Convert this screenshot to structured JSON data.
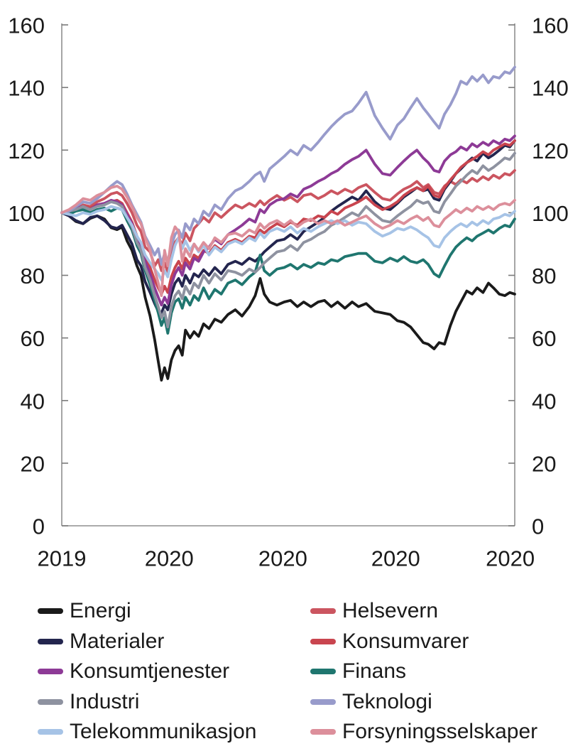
{
  "figure": {
    "kind": "sector-index-line-chart",
    "background": "#ffffff",
    "text_color": "#1a1a1a",
    "axis_color": "#8f8f8f",
    "tick_color": "#7a7a7a"
  },
  "chart_data": {
    "type": "line",
    "title": "",
    "xlabel": "",
    "ylabel": "",
    "index_base": 100,
    "x_axis": {
      "tick_labels": [
        "2019",
        "2020",
        "2020",
        "2020",
        "2020"
      ],
      "tick_positions": [
        0,
        0.237,
        0.488,
        0.737,
        0.99
      ]
    },
    "y_axis": {
      "min": 0,
      "max": 160,
      "step": 20,
      "tick_labels": [
        "0",
        "20",
        "40",
        "60",
        "80",
        "100",
        "120",
        "140",
        "160"
      ],
      "sides": "both",
      "grid": false
    },
    "x": [
      0,
      0.016,
      0.031,
      0.047,
      0.063,
      0.078,
      0.094,
      0.109,
      0.122,
      0.133,
      0.144,
      0.155,
      0.166,
      0.175,
      0.184,
      0.195,
      0.205,
      0.213,
      0.22,
      0.227,
      0.234,
      0.242,
      0.25,
      0.258,
      0.266,
      0.273,
      0.283,
      0.292,
      0.302,
      0.313,
      0.325,
      0.338,
      0.352,
      0.367,
      0.383,
      0.398,
      0.414,
      0.427,
      0.438,
      0.447,
      0.459,
      0.475,
      0.491,
      0.505,
      0.52,
      0.534,
      0.55,
      0.566,
      0.58,
      0.595,
      0.609,
      0.625,
      0.641,
      0.655,
      0.672,
      0.691,
      0.708,
      0.725,
      0.741,
      0.755,
      0.77,
      0.784,
      0.798,
      0.809,
      0.822,
      0.833,
      0.845,
      0.858,
      0.87,
      0.881,
      0.894,
      0.906,
      0.917,
      0.93,
      0.942,
      0.953,
      0.966,
      0.978,
      0.989,
      1.0
    ],
    "series": [
      {
        "name": "Energi",
        "color": "#1a1a1a",
        "values": [
          100,
          99,
          97.2,
          96.5,
          98.2,
          99,
          98,
          95.2,
          94.6,
          95.4,
          91,
          88,
          83,
          80,
          73,
          67,
          59.5,
          52.5,
          46.5,
          50.5,
          47,
          53,
          56,
          57.5,
          54.5,
          62.5,
          60,
          62,
          60.5,
          64.5,
          63,
          66,
          65,
          67.5,
          69,
          67,
          70,
          73.5,
          79,
          74,
          71.5,
          70.5,
          71.5,
          72,
          70,
          71.5,
          70,
          71.5,
          72,
          70,
          71.5,
          69.5,
          71.5,
          70,
          71,
          68.5,
          68,
          67.5,
          65.5,
          65,
          63.5,
          61,
          58.5,
          58,
          56.5,
          58.5,
          58,
          64,
          68.5,
          71.5,
          75,
          74,
          76,
          74.5,
          77.5,
          76,
          74,
          73.5,
          74.5,
          74
        ]
      },
      {
        "name": "Helsevern",
        "color": "#cb5560",
        "values": [
          100,
          100.5,
          101.5,
          102.5,
          102,
          103.5,
          104.5,
          106,
          106.5,
          105.5,
          103,
          100,
          96,
          94,
          89,
          87.5,
          83,
          85,
          81.5,
          84,
          81,
          87,
          90.5,
          92,
          89.5,
          93.5,
          91,
          95,
          96.5,
          98.5,
          97,
          100,
          98.5,
          100.5,
          102.5,
          101.5,
          103,
          102,
          103.8,
          102.5,
          104,
          105.5,
          104,
          105,
          103.5,
          105.5,
          106,
          104.5,
          105.5,
          107,
          106,
          107.5,
          106.5,
          108,
          109,
          106.5,
          104.5,
          104,
          106,
          107.5,
          108.5,
          110,
          108,
          109,
          106.5,
          106,
          108.5,
          110,
          109,
          110.5,
          109.5,
          111,
          110,
          111.5,
          110.5,
          112,
          111,
          112.5,
          112,
          113.5
        ]
      },
      {
        "name": "Materialer",
        "color": "#23254e",
        "values": [
          100,
          99,
          97.5,
          96.5,
          98.5,
          99,
          97.5,
          95.5,
          95,
          96,
          93,
          90,
          85,
          83,
          78,
          74.5,
          71,
          68.5,
          68,
          70.5,
          69,
          74,
          77.5,
          79,
          76.5,
          80,
          77.5,
          80.5,
          79.5,
          81.8,
          80,
          82.5,
          80.5,
          83.5,
          84.5,
          83.5,
          85.5,
          84.5,
          86,
          87.5,
          89,
          91,
          91.5,
          93,
          91.5,
          94,
          95.5,
          97,
          98.5,
          100.5,
          102,
          103.5,
          105,
          104,
          107,
          103.5,
          101.5,
          101,
          103,
          105,
          106.5,
          108,
          107,
          107.5,
          104.5,
          104,
          107.5,
          110,
          112.5,
          114,
          116,
          117.5,
          116.5,
          119,
          117.5,
          118.5,
          120,
          121.5,
          121,
          123
        ]
      },
      {
        "name": "Konsumvarer",
        "color": "#c9454f",
        "values": [
          100,
          100.5,
          101,
          102,
          101.5,
          102.5,
          103,
          103.5,
          104,
          103,
          100,
          97,
          92.5,
          90,
          85.5,
          82.5,
          78.5,
          76,
          74,
          76.5,
          74.5,
          79.5,
          82.5,
          84.5,
          82,
          85.5,
          83.5,
          86.5,
          85.5,
          88,
          87,
          89.5,
          88,
          90.5,
          91.5,
          90.5,
          92.5,
          92,
          94.5,
          93.5,
          95,
          96.5,
          95.5,
          97,
          96,
          98,
          97.5,
          99,
          98.5,
          100.5,
          99.5,
          101.5,
          102.5,
          103.5,
          105,
          102.5,
          101,
          102,
          103.5,
          105.5,
          107,
          108,
          107,
          108.5,
          105.5,
          105,
          108,
          110.5,
          112.5,
          114.5,
          116,
          117,
          118,
          119.5,
          118.5,
          120,
          121,
          122,
          121.5,
          123
        ]
      },
      {
        "name": "Konsumtjenester",
        "color": "#8d3a96",
        "values": [
          100,
          100.5,
          101.5,
          102,
          101,
          102.5,
          103,
          104,
          103.5,
          102.5,
          99.5,
          96.5,
          92,
          89.5,
          84.5,
          80.5,
          76,
          73,
          70.5,
          73,
          71,
          77,
          80.5,
          82.5,
          80,
          84,
          82,
          85.5,
          84.5,
          87.5,
          89,
          91.5,
          90,
          93,
          94.5,
          96,
          98,
          97,
          101,
          100,
          102.5,
          104,
          104.5,
          106,
          105,
          107.5,
          108.5,
          110,
          111,
          112.5,
          113.5,
          115.5,
          117,
          118,
          120,
          115.5,
          112.5,
          112,
          114.5,
          116.5,
          118.5,
          120,
          117.5,
          116,
          113.5,
          113,
          116.5,
          118.5,
          119.5,
          121,
          120,
          122,
          121,
          122.5,
          121.5,
          123,
          122,
          123.5,
          123,
          124.5
        ]
      },
      {
        "name": "Finans",
        "color": "#1f766f",
        "values": [
          100,
          99.5,
          100.5,
          101,
          100,
          101,
          101.5,
          100.5,
          101.5,
          101,
          97.5,
          94.5,
          89.5,
          87,
          81.5,
          77,
          72,
          68,
          64,
          66.5,
          61.5,
          68,
          71.5,
          72.5,
          69.5,
          73,
          70.5,
          73.5,
          72,
          76,
          72.5,
          75.5,
          74,
          77.5,
          78.5,
          77,
          79.5,
          81,
          86.5,
          81.5,
          80,
          82,
          82.5,
          83.5,
          82,
          83.5,
          82.5,
          84,
          83.5,
          85,
          84.5,
          86,
          86.5,
          87,
          87,
          84.5,
          84,
          85.5,
          84.5,
          86,
          84.5,
          84,
          85,
          83.5,
          80.5,
          79.5,
          83,
          86.5,
          89,
          90.5,
          92,
          91,
          92.5,
          93.5,
          94.5,
          93.5,
          95,
          96,
          95.5,
          98
        ]
      },
      {
        "name": "Industri",
        "color": "#8e92a0",
        "values": [
          100,
          100.5,
          101,
          102,
          101,
          102,
          102.5,
          103.5,
          103,
          102,
          98.5,
          95.5,
          90.5,
          88,
          82.5,
          78.5,
          73.5,
          70,
          66.5,
          68.5,
          63.5,
          70,
          73.5,
          75,
          72.5,
          76.5,
          74,
          77.5,
          76,
          80,
          77.5,
          80.5,
          78.5,
          81.5,
          81,
          80,
          82,
          81,
          82.5,
          84,
          85.5,
          87.5,
          88,
          89.5,
          88,
          90.5,
          91.5,
          93,
          94,
          96,
          97,
          98.5,
          100,
          99,
          102,
          99.5,
          97.5,
          97,
          99,
          100.5,
          102,
          104,
          103,
          103.5,
          100.5,
          100,
          103.5,
          106,
          108.5,
          110,
          112,
          113.5,
          112.5,
          115,
          113.5,
          114.5,
          116,
          117.5,
          117,
          119
        ]
      },
      {
        "name": "Teknologi",
        "color": "#989bcb",
        "values": [
          100,
          100.5,
          102,
          103.5,
          103,
          104.5,
          106.5,
          108.5,
          110,
          109,
          106,
          102.5,
          99.5,
          97,
          92.5,
          89.5,
          86.5,
          88.5,
          83.5,
          87,
          84.5,
          89.5,
          93,
          94.5,
          92,
          96.5,
          94.5,
          98,
          96.5,
          100.5,
          99,
          102.5,
          101,
          104.5,
          107,
          108,
          110,
          112,
          113,
          110,
          114,
          116,
          118,
          120,
          118.5,
          121.5,
          120,
          122.5,
          125,
          127.5,
          129.5,
          131.5,
          132.5,
          135,
          138.5,
          131,
          127,
          123.5,
          128,
          130,
          133.5,
          136.5,
          133.5,
          131.5,
          129,
          127,
          131.5,
          134.5,
          138,
          142,
          141,
          143.5,
          142,
          144,
          141.5,
          143.5,
          143,
          145,
          144.5,
          146.5
        ]
      },
      {
        "name": "Telekommunikasjon",
        "color": "#a6c3e6",
        "values": [
          100,
          99.5,
          99,
          100,
          99.5,
          100.5,
          101,
          102,
          101.5,
          101,
          98.5,
          96,
          92.5,
          90.5,
          86.5,
          84,
          82,
          80.5,
          78.5,
          81.5,
          79.5,
          85,
          89.5,
          92,
          88.5,
          91,
          88,
          90,
          87.5,
          89.5,
          86.5,
          89,
          87.5,
          90,
          91,
          90,
          92,
          91,
          93.5,
          92,
          94,
          95,
          94,
          95.5,
          93.5,
          95,
          94,
          95.5,
          96.5,
          97.5,
          96.5,
          97.5,
          96,
          97,
          96.5,
          94,
          92.5,
          93.5,
          95,
          94.5,
          95.5,
          94.5,
          93,
          92,
          89.5,
          89,
          92,
          94,
          95.5,
          96.5,
          95.5,
          97,
          96,
          97.5,
          96.5,
          98,
          98.5,
          99.5,
          99,
          100.5
        ]
      },
      {
        "name": "Forsyningsselskaper",
        "color": "#dc8f9b",
        "values": [
          100,
          101,
          102.5,
          104.5,
          104,
          105.5,
          106.5,
          108,
          108.5,
          107.5,
          105,
          102,
          98.5,
          96.5,
          92,
          88,
          82,
          77.5,
          73.5,
          88,
          83,
          92,
          95.5,
          94,
          84.5,
          88.5,
          86,
          90,
          88,
          90.5,
          88.5,
          92,
          90.5,
          93,
          93.5,
          92.5,
          94.5,
          93.5,
          96.5,
          95,
          96.5,
          97.5,
          96,
          97.5,
          95.5,
          97,
          98,
          96.5,
          97.5,
          96.5,
          97.5,
          96,
          97,
          98,
          99,
          96.5,
          95,
          96,
          97.5,
          96.5,
          98,
          99,
          97.5,
          98.5,
          96,
          95.5,
          98,
          99.5,
          101,
          100,
          101.5,
          100.5,
          102,
          101,
          102,
          101,
          102.5,
          103,
          102.5,
          104
        ]
      }
    ],
    "legend": {
      "position": "bottom",
      "columns": 2,
      "order": [
        "Energi",
        "Helsevern",
        "Materialer",
        "Konsumvarer",
        "Konsumtjenester",
        "Finans",
        "Industri",
        "Teknologi",
        "Telekommunikasjon",
        "Forsyningsselskaper"
      ]
    }
  }
}
